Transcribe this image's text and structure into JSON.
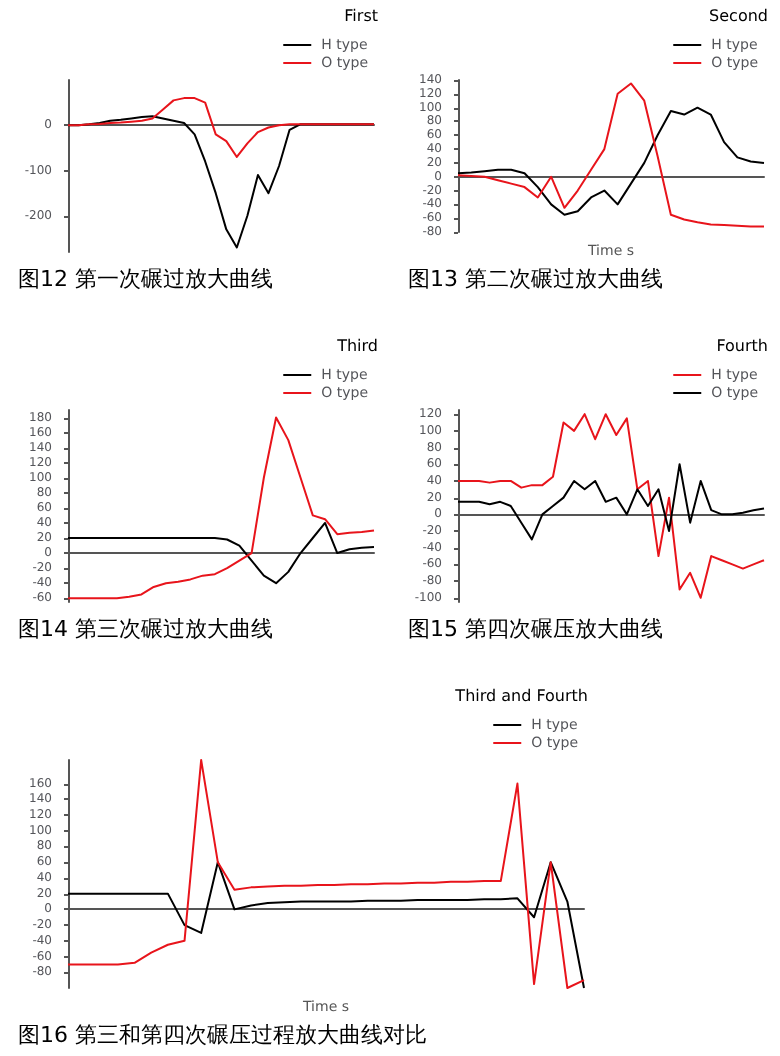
{
  "chart_data": [
    {
      "type": "line",
      "title": "图12 第一次碾过放大曲线",
      "legend_title": "First",
      "legend": "top right",
      "marker": "none",
      "tick_labels": "y",
      "categories": [
        null,
        null,
        null,
        null,
        null,
        null,
        null,
        null,
        null,
        null,
        null,
        null,
        null,
        null,
        null,
        null,
        null,
        null,
        null,
        null,
        null,
        null,
        null,
        null,
        null,
        null,
        null,
        null,
        null,
        null
      ],
      "ylim": [
        -280,
        100
      ],
      "yticks": [
        0,
        -100,
        -200
      ],
      "series": [
        {
          "name": "H type",
          "color": "#000000",
          "values": [
            0,
            0,
            2,
            5,
            10,
            12,
            15,
            18,
            20,
            15,
            10,
            5,
            -20,
            -80,
            -150,
            -230,
            -270,
            -200,
            -110,
            -150,
            -90,
            -10,
            2,
            2,
            2,
            2,
            2,
            2,
            2,
            2
          ]
        },
        {
          "name": "O type",
          "color": "#e8141b",
          "values": [
            0,
            0,
            2,
            3,
            5,
            6,
            8,
            10,
            15,
            35,
            55,
            60,
            60,
            50,
            -20,
            -35,
            -70,
            -40,
            -15,
            -5,
            0,
            2,
            2,
            2,
            2,
            2,
            2,
            2,
            2,
            2
          ]
        }
      ]
    },
    {
      "type": "line",
      "title": "图13 第二次碾过放大曲线",
      "legend_title": "Second",
      "xlabel": "Time s",
      "legend": "top right",
      "marker": "none",
      "tick_labels": "y",
      "categories": [
        null,
        null,
        null,
        null,
        null,
        null,
        null,
        null,
        null,
        null,
        null,
        null,
        null,
        null,
        null,
        null,
        null,
        null,
        null,
        null,
        null,
        null,
        null,
        null
      ],
      "ylim": [
        -80,
        140
      ],
      "yticks": [
        140,
        120,
        100,
        80,
        60,
        40,
        20,
        0,
        -20,
        -40,
        -60,
        -80
      ],
      "series": [
        {
          "name": "H type",
          "color": "#000000",
          "values": [
            5,
            6,
            8,
            10,
            10,
            5,
            -15,
            -40,
            -55,
            -50,
            -30,
            -20,
            -40,
            -10,
            20,
            60,
            95,
            90,
            100,
            90,
            50,
            28,
            22,
            20
          ]
        },
        {
          "name": "O type",
          "color": "#e8141b",
          "values": [
            2,
            1,
            0,
            -5,
            -10,
            -15,
            -30,
            0,
            -45,
            -20,
            10,
            40,
            120,
            135,
            110,
            30,
            -55,
            -62,
            -66,
            -69,
            -70,
            -71,
            -72,
            -72
          ]
        }
      ]
    },
    {
      "type": "line",
      "title": "图14 第三次碾过放大曲线",
      "legend_title": "Third",
      "legend": "top right",
      "marker": "none",
      "tick_labels": "y",
      "categories": [
        null,
        null,
        null,
        null,
        null,
        null,
        null,
        null,
        null,
        null,
        null,
        null,
        null,
        null,
        null,
        null,
        null,
        null,
        null,
        null,
        null,
        null,
        null,
        null,
        null,
        null
      ],
      "ylim": [
        -65,
        190
      ],
      "yticks": [
        180,
        160,
        140,
        120,
        100,
        80,
        60,
        40,
        20,
        0,
        -20,
        -40,
        -60
      ],
      "series": [
        {
          "name": "H type",
          "color": "#000000",
          "values": [
            20,
            20,
            20,
            20,
            20,
            20,
            20,
            20,
            20,
            20,
            20,
            20,
            20,
            18,
            10,
            -10,
            -30,
            -40,
            -25,
            0,
            20,
            40,
            0,
            5,
            7,
            8
          ]
        },
        {
          "name": "O type",
          "color": "#e8141b",
          "values": [
            -60,
            -60,
            -60,
            -60,
            -60,
            -58,
            -55,
            -45,
            -40,
            -38,
            -35,
            -30,
            -28,
            -20,
            -10,
            0,
            100,
            180,
            150,
            100,
            50,
            45,
            25,
            27,
            28,
            30
          ]
        }
      ]
    },
    {
      "type": "line",
      "title": "图15 第四次碾压放大曲线",
      "legend_title": "Fourth",
      "legend": "top right",
      "marker": "none",
      "tick_labels": "y",
      "categories": [
        null,
        null,
        null,
        null,
        null,
        null,
        null,
        null,
        null,
        null,
        null,
        null,
        null,
        null,
        null,
        null,
        null,
        null,
        null,
        null,
        null,
        null,
        null,
        null,
        null,
        null,
        null,
        null,
        null,
        null
      ],
      "ylim": [
        -105,
        125
      ],
      "yticks": [
        120,
        100,
        80,
        60,
        40,
        20,
        0,
        -20,
        -40,
        -60,
        -80,
        -100
      ],
      "series": [
        {
          "name": "H type",
          "color": "#e8141b",
          "values": [
            40,
            40,
            40,
            38,
            40,
            40,
            32,
            35,
            35,
            45,
            110,
            100,
            120,
            90,
            120,
            95,
            115,
            30,
            40,
            -50,
            20,
            -90,
            -70,
            -100,
            -50,
            -55,
            -60,
            -65,
            -60,
            -55
          ]
        },
        {
          "name": "O type",
          "color": "#000000",
          "values": [
            15,
            15,
            15,
            12,
            15,
            10,
            -10,
            -30,
            0,
            10,
            20,
            40,
            30,
            40,
            15,
            20,
            0,
            30,
            10,
            30,
            -20,
            60,
            -10,
            40,
            5,
            0,
            0,
            2,
            5,
            7
          ]
        }
      ]
    },
    {
      "type": "line",
      "title": "图16 第三和第四次碾压过程放大曲线对比",
      "legend_title": "Third and Fourth",
      "xlabel": "Time s",
      "legend": "top right",
      "marker": "none",
      "tick_labels": "y",
      "categories": [
        null,
        null,
        null,
        null,
        null,
        null,
        null,
        null,
        null,
        null,
        null,
        null,
        null,
        null,
        null,
        null,
        null,
        null,
        null,
        null,
        null,
        null,
        null,
        null,
        null,
        null,
        null,
        null,
        null,
        null,
        null,
        null
      ],
      "ylim": [
        -100,
        190
      ],
      "yticks": [
        160,
        140,
        120,
        100,
        80,
        60,
        40,
        20,
        0,
        -20,
        -40,
        -60,
        -80
      ],
      "series": [
        {
          "name": "H type",
          "color": "#000000",
          "values": [
            20,
            20,
            20,
            20,
            20,
            20,
            20,
            -20,
            -30,
            60,
            0,
            5,
            8,
            9,
            10,
            10,
            10,
            10,
            11,
            11,
            11,
            12,
            12,
            12,
            12,
            13,
            13,
            14,
            -10,
            60,
            10,
            -100
          ]
        },
        {
          "name": "O type",
          "color": "#e8141b",
          "values": [
            -70,
            -70,
            -70,
            -70,
            -68,
            -55,
            -45,
            -40,
            190,
            60,
            25,
            28,
            29,
            30,
            30,
            31,
            31,
            32,
            32,
            33,
            33,
            34,
            34,
            35,
            35,
            36,
            36,
            160,
            -95,
            60,
            -100,
            -90
          ]
        }
      ]
    }
  ]
}
